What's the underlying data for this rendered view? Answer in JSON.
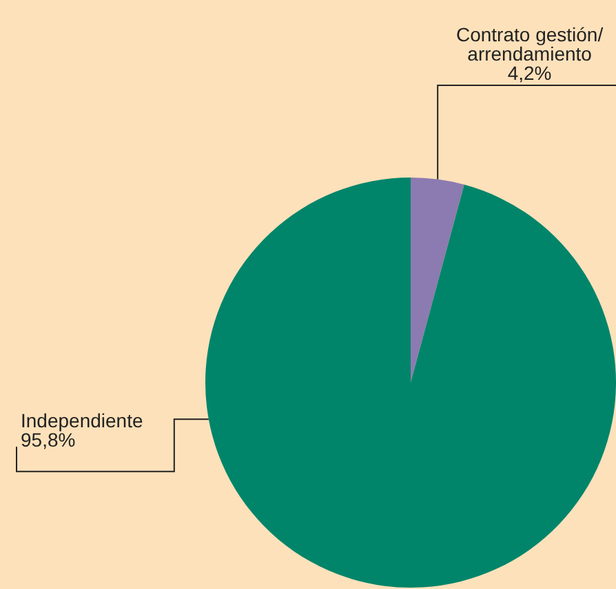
{
  "chart_data": {
    "type": "pie",
    "categories": [
      "Contrato gestión/ arrendamiento",
      "Independiente"
    ],
    "values": [
      4.2,
      95.8
    ],
    "colors": [
      "#8c7bb0",
      "#00856a"
    ],
    "value_labels": [
      "4,2%",
      "95,8%"
    ],
    "legend": false
  }
}
